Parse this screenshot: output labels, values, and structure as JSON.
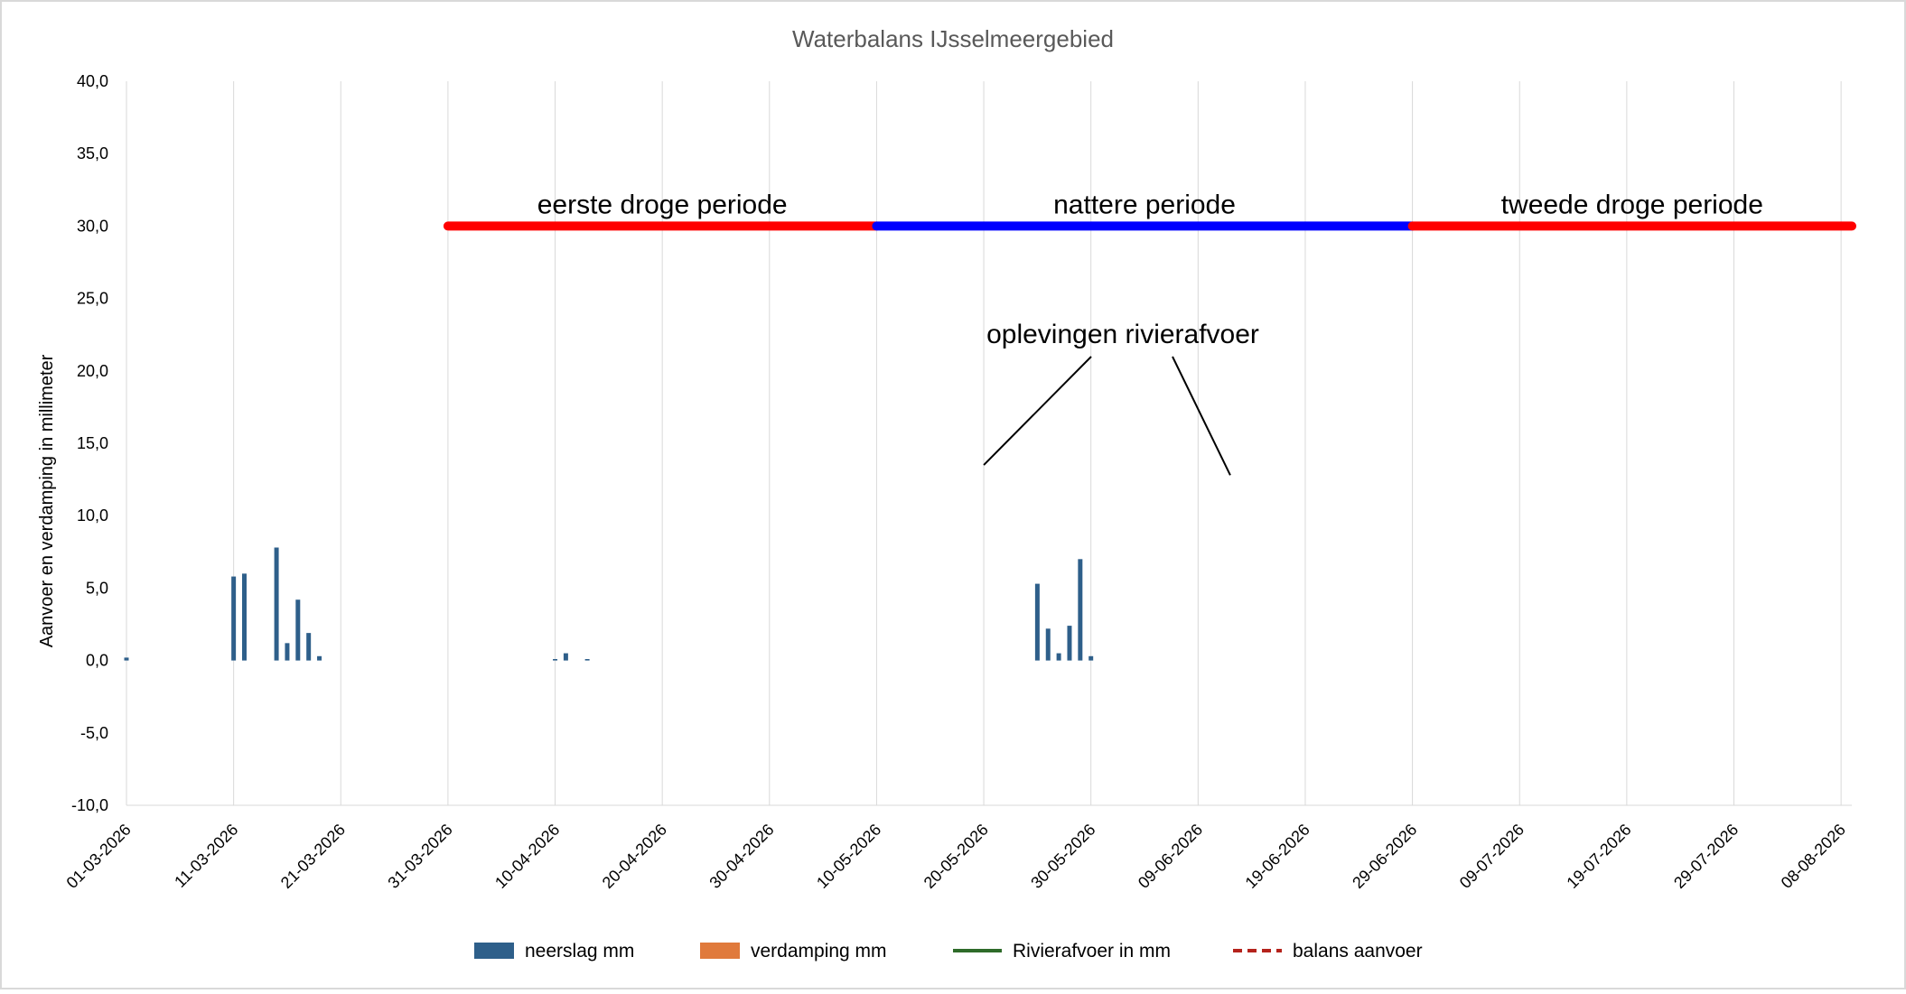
{
  "chart_data": {
    "type": "bar+line",
    "title": "Waterbalans IJsselmeergebied",
    "ylabel": "Aanvoer en verdamping in millimeter",
    "xlabel": "",
    "ylim": [
      -10,
      40
    ],
    "yticks": [
      -10,
      -5,
      0,
      5,
      10,
      15,
      20,
      25,
      30,
      35,
      40
    ],
    "ytick_labels": [
      "-10,0",
      "-5,0",
      "0,0",
      "5,0",
      "10,0",
      "15,0",
      "20,0",
      "25,0",
      "30,0",
      "35,0",
      "40,0"
    ],
    "x_start": "01-03-2026",
    "xtick_labels": [
      "01-03-2026",
      "11-03-2026",
      "21-03-2026",
      "31-03-2026",
      "10-04-2026",
      "20-04-2026",
      "30-04-2026",
      "10-05-2026",
      "20-05-2026",
      "30-05-2026",
      "09-06-2026",
      "19-06-2026",
      "29-06-2026",
      "09-07-2026",
      "19-07-2026",
      "29-07-2026",
      "08-08-2026"
    ],
    "grid": "vertical",
    "legend_position": "bottom",
    "series": [
      {
        "name": "neerslag mm",
        "kind": "bar",
        "color": "#2e5f8a",
        "values": [
          0.2,
          0,
          0,
          0,
          0,
          0,
          0,
          0,
          0,
          0,
          5.8,
          6.0,
          0,
          0,
          7.8,
          1.2,
          4.2,
          1.9,
          0.3,
          0,
          0,
          0,
          0,
          0,
          0,
          0,
          0,
          0,
          0,
          0,
          0,
          0,
          0,
          0,
          0,
          0,
          0,
          0,
          0,
          0,
          0.1,
          0.5,
          0,
          0.1,
          0,
          0,
          0,
          0,
          0,
          0,
          0,
          0,
          0,
          0,
          0,
          0,
          0,
          0,
          0,
          0,
          0,
          0,
          0,
          0,
          0,
          0,
          0,
          0,
          0,
          0,
          0,
          0,
          0,
          0,
          0,
          0,
          0,
          0,
          0,
          0,
          0,
          0,
          0,
          0,
          0,
          5.3,
          2.2,
          0.5,
          2.4,
          7.0,
          0.3,
          0,
          0,
          0,
          0,
          0,
          0,
          0,
          0,
          0,
          0,
          0,
          0,
          0,
          0,
          0,
          0,
          0,
          0,
          0,
          0,
          0,
          0,
          0,
          0,
          0,
          0,
          0,
          0,
          0,
          0,
          0,
          0,
          0,
          0,
          0,
          0,
          0,
          0,
          0,
          0,
          0,
          0,
          0,
          0,
          0,
          0,
          0,
          0,
          0,
          0,
          0,
          0,
          0,
          0,
          0,
          0,
          0,
          0,
          0,
          0,
          0,
          0,
          0,
          0,
          0,
          0,
          0,
          0,
          0,
          0,
          0,
          0,
          0
        ]
      },
      {
        "name": "verdamping mm",
        "kind": "bar",
        "color": "#e07a3c",
        "values": []
      },
      {
        "name": "Rivierafvoer in mm",
        "kind": "line",
        "color": "#2e6b2a",
        "dash": "solid",
        "values": []
      },
      {
        "name": "balans aanvoer",
        "kind": "line",
        "color": "#b5231c",
        "dash": "dashed",
        "values": []
      }
    ],
    "periods": [
      {
        "label": "eerste droge periode",
        "start_day": 30,
        "end_day": 70,
        "y": 30,
        "color": "#ff0000"
      },
      {
        "label": "nattere periode",
        "start_day": 70,
        "end_day": 120,
        "y": 30,
        "color": "#0000ff"
      },
      {
        "label": "tweede droge periode",
        "start_day": 120,
        "end_day": 161,
        "y": 30,
        "color": "#ff0000"
      }
    ],
    "annotation": {
      "label": "oplevingen rivierafvoer",
      "points": [
        {
          "day": 80,
          "y": 13.5
        },
        {
          "day": 103,
          "y": 12.8
        }
      ]
    }
  }
}
